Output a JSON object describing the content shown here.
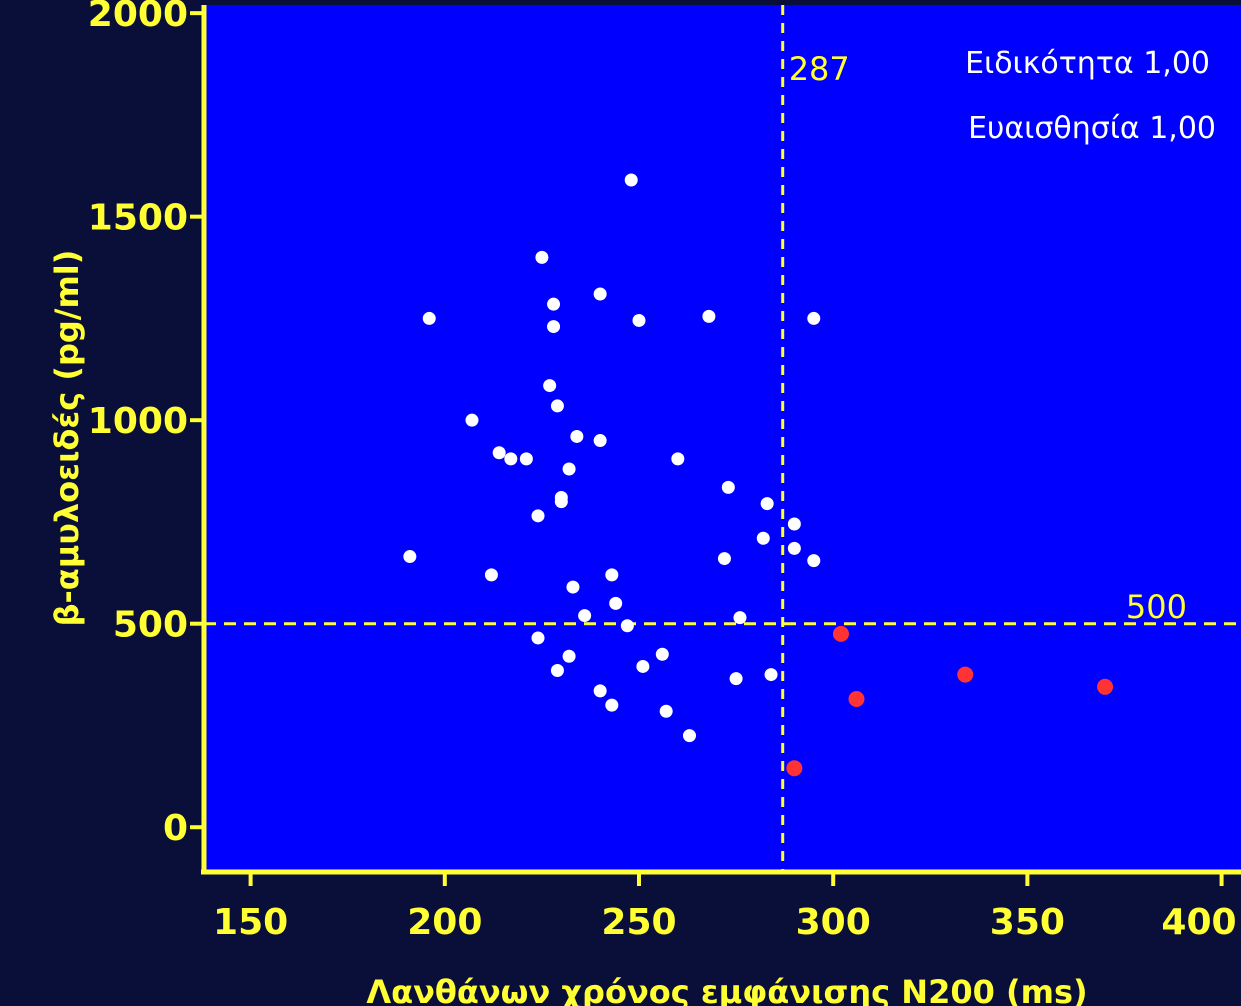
{
  "colors": {
    "background": "#0000ff",
    "outer": "#0a0f3a",
    "axis": "#ffff33",
    "point_normal": "#ffffff",
    "point_highlight": "#ff3333"
  },
  "chart_data": {
    "type": "scatter",
    "title": "",
    "xlabel": "Λανθάνων χρόνος εμφάνισης N200 (ms)",
    "ylabel": "β-αμυλοειδές (pg/ml)",
    "xlim": [
      138,
      405
    ],
    "ylim": [
      -110,
      2020
    ],
    "x_ticks": [
      150,
      200,
      250,
      300,
      350,
      400
    ],
    "y_ticks": [
      0,
      500,
      1000,
      1500,
      2000
    ],
    "x_tick_labels": [
      "150",
      "200",
      "250",
      "300",
      "350",
      "400"
    ],
    "y_tick_labels": [
      "0",
      "500",
      "1000",
      "1500",
      "2000"
    ],
    "grid": false,
    "reference_lines": {
      "vertical": {
        "x": 287,
        "label": "287"
      },
      "horizontal": {
        "y": 500,
        "label": "500"
      }
    },
    "annotations": [
      "Ειδικότητα 1,00",
      "Ευαισθησία 1,00"
    ],
    "series": [
      {
        "points": [
          [
            191,
            665
          ],
          [
            196,
            1250
          ],
          [
            207,
            1000
          ],
          [
            212,
            620
          ],
          [
            214,
            920
          ],
          [
            217,
            905
          ],
          [
            221,
            905
          ],
          [
            224,
            765
          ],
          [
            224,
            465
          ],
          [
            225,
            1400
          ],
          [
            227,
            1085
          ],
          [
            228,
            1285
          ],
          [
            228,
            1230
          ],
          [
            229,
            1035
          ],
          [
            229,
            385
          ],
          [
            230,
            810
          ],
          [
            230,
            800
          ],
          [
            232,
            880
          ],
          [
            232,
            420
          ],
          [
            233,
            590
          ],
          [
            234,
            960
          ],
          [
            236,
            520
          ],
          [
            240,
            1310
          ],
          [
            240,
            950
          ],
          [
            240,
            335
          ],
          [
            243,
            620
          ],
          [
            243,
            300
          ],
          [
            244,
            550
          ],
          [
            247,
            495
          ],
          [
            248,
            1590
          ],
          [
            250,
            1245
          ],
          [
            251,
            395
          ],
          [
            256,
            425
          ],
          [
            257,
            285
          ],
          [
            260,
            905
          ],
          [
            263,
            225
          ],
          [
            268,
            1255
          ],
          [
            272,
            660
          ],
          [
            273,
            835
          ],
          [
            275,
            365
          ],
          [
            276,
            515
          ],
          [
            282,
            710
          ],
          [
            283,
            795
          ],
          [
            284,
            375
          ],
          [
            290,
            745
          ],
          [
            290,
            685
          ],
          [
            295,
            1250
          ],
          [
            295,
            655
          ]
        ]
      },
      {
        "points": [
          [
            290,
            145
          ],
          [
            302,
            475
          ],
          [
            306,
            315
          ],
          [
            334,
            375
          ],
          [
            370,
            345
          ]
        ]
      }
    ]
  }
}
